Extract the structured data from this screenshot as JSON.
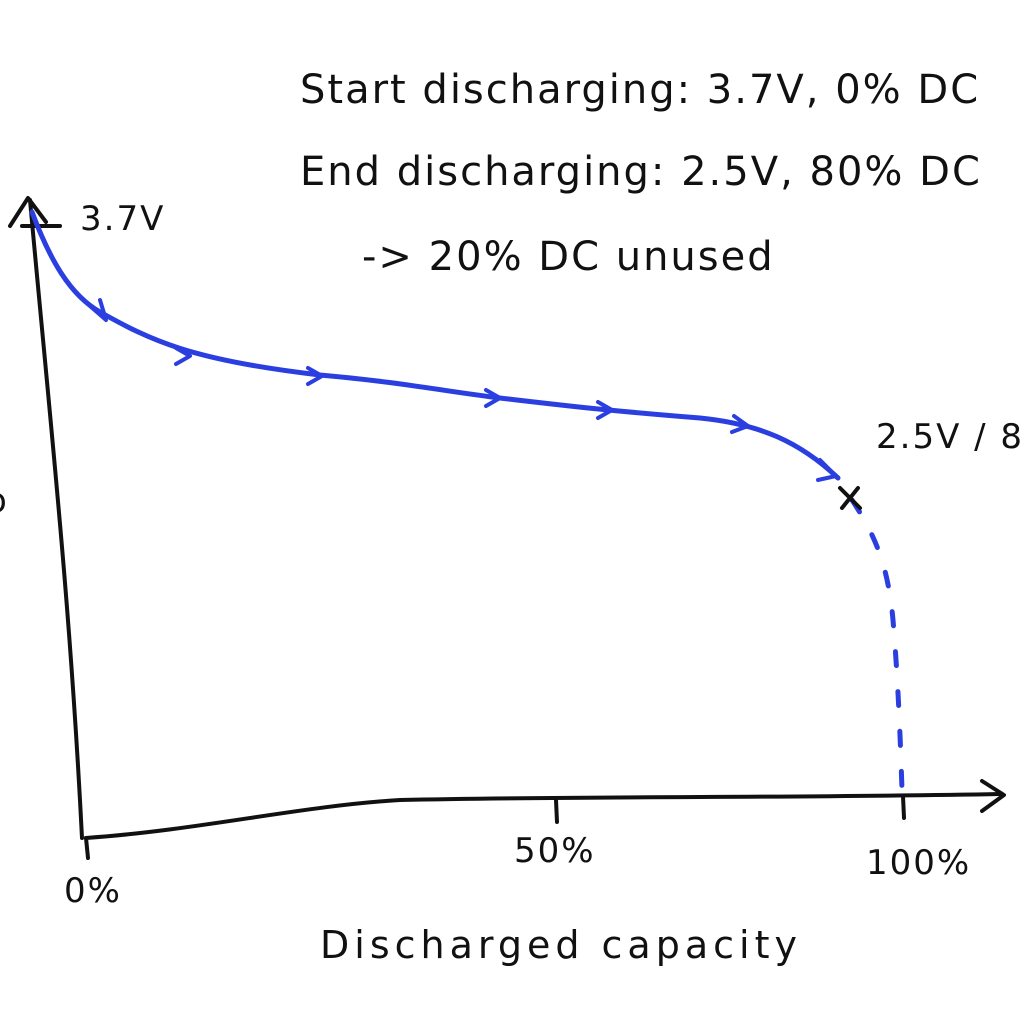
{
  "notes": {
    "start": "Start discharging: 3.7V, 0% DC",
    "end": "End discharging: 2.5V, 80% DC",
    "unused": "-> 20% DC unused"
  },
  "labels": {
    "start_voltage": "3.7V",
    "end_point": "2.5V / 8",
    "y_tick_partial": "o",
    "x_tick_0": "0%",
    "x_tick_50": "50%",
    "x_tick_100": "100%",
    "x_axis_title": "Discharged capacity"
  },
  "colors": {
    "ink": "#111111",
    "curve": "#2b3fe0"
  },
  "chart_data": {
    "type": "line",
    "xlabel": "Discharged capacity",
    "ylabel": "",
    "x_ticks": [
      "0%",
      "50%",
      "100%"
    ],
    "series": [
      {
        "style": "solid-with-arrows",
        "x": [
          0,
          3,
          10,
          20,
          30,
          40,
          50,
          60,
          70,
          75,
          80
        ],
        "y": [
          3.7,
          3.45,
          3.28,
          3.18,
          3.14,
          3.11,
          3.07,
          3.03,
          2.99,
          2.92,
          2.5
        ]
      },
      {
        "style": "dashed",
        "x": [
          80,
          84,
          100
        ],
        "y": [
          2.5,
          2.35,
          0.5
        ]
      }
    ],
    "annotations": [
      {
        "text": "3.7V",
        "x": 0,
        "y": 3.7
      },
      {
        "text": "2.5V / 8",
        "x": 80,
        "y": 2.5,
        "marker": "x"
      }
    ]
  }
}
